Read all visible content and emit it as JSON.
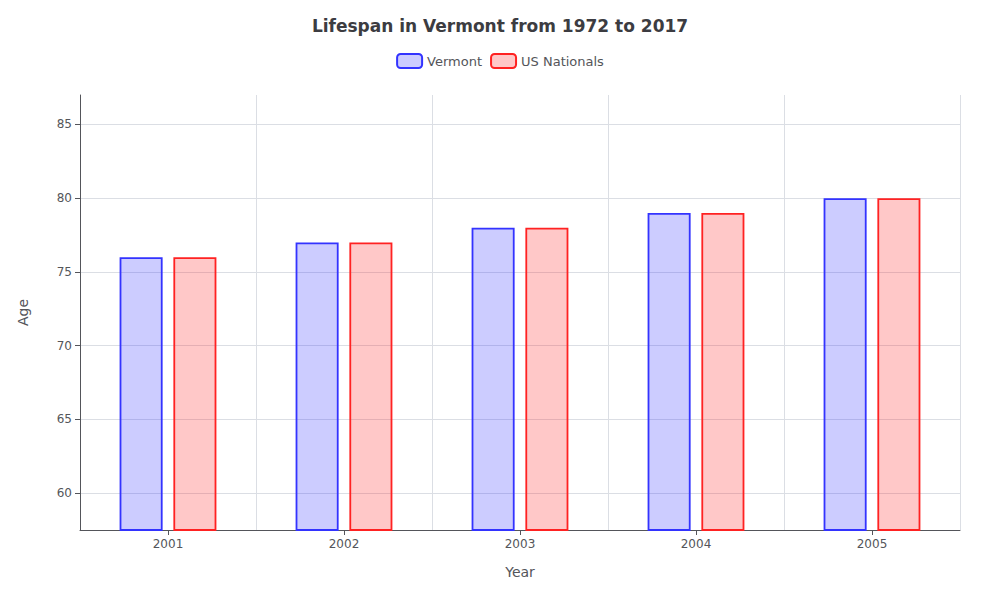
{
  "chart_data": {
    "type": "bar",
    "title": "Lifespan in Vermont from 1972 to 2017",
    "xlabel": "Year",
    "ylabel": "Age",
    "categories": [
      "2001",
      "2002",
      "2003",
      "2004",
      "2005"
    ],
    "series": [
      {
        "name": "Vermont",
        "color": "#3333ff",
        "values": [
          76,
          77,
          78,
          79,
          80
        ]
      },
      {
        "name": "US Nationals",
        "color": "#ff2222",
        "values": [
          76,
          77,
          78,
          79,
          80
        ]
      }
    ],
    "ylim": [
      57.5,
      87
    ],
    "yticks": [
      60,
      65,
      70,
      75,
      80,
      85
    ],
    "grid": true,
    "legend": "top"
  }
}
